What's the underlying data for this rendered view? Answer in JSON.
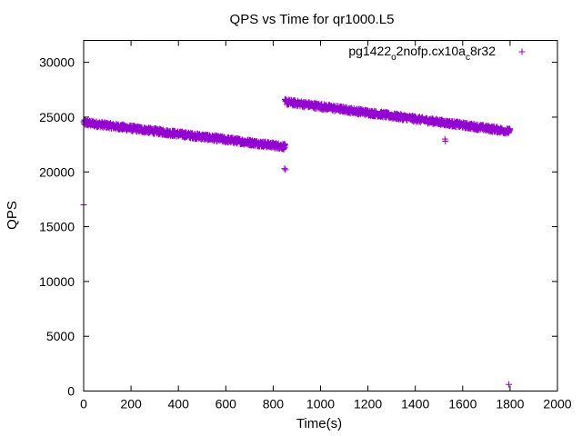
{
  "chart_data": {
    "type": "scatter",
    "title": "QPS vs Time for qr1000.L5",
    "xlabel": "Time(s)",
    "ylabel": "QPS",
    "xlim": [
      0,
      2000
    ],
    "ylim": [
      0,
      32000
    ],
    "x_ticks": [
      0,
      200,
      400,
      600,
      800,
      1000,
      1200,
      1400,
      1600,
      1800,
      2000
    ],
    "y_ticks": [
      0,
      5000,
      10000,
      15000,
      20000,
      25000,
      30000
    ],
    "x_tick_labels": [
      "0",
      "200",
      "400",
      "600",
      "800",
      "1000",
      "1200",
      "1400",
      "1600",
      "1800",
      "2000"
    ],
    "y_tick_labels": [
      "0",
      "5000",
      "10000",
      "15000",
      "20000",
      "25000",
      "30000"
    ],
    "grid": false,
    "legend_position": "top-right",
    "marker": "+",
    "color": "#9400d3",
    "series": [
      {
        "legend": {
          "main": "pg1422",
          "sub1": "o",
          "mid": "2nofp.cx10a",
          "sub2": "c",
          "tail": "8r32"
        },
        "segments": [
          {
            "x_start": 0,
            "x_end": 850,
            "y_start": 24500,
            "y_end": 22300,
            "jitter": 250
          },
          {
            "x_start": 850,
            "x_end": 1800,
            "y_start": 26400,
            "y_end": 23700,
            "jitter": 250
          }
        ],
        "outliers": [
          {
            "x": 0,
            "y": 17000
          },
          {
            "x": 848,
            "y": 20300
          },
          {
            "x": 852,
            "y": 20200
          },
          {
            "x": 1525,
            "y": 23000
          },
          {
            "x": 1527,
            "y": 22800
          },
          {
            "x": 1795,
            "y": 600
          }
        ]
      }
    ]
  }
}
